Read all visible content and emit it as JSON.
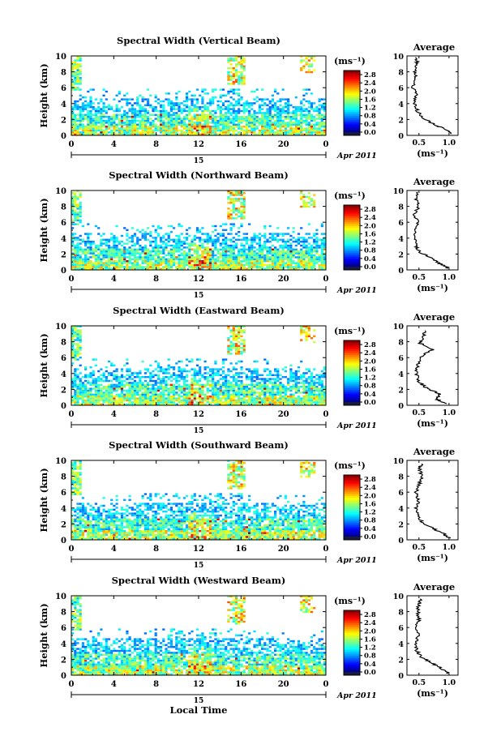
{
  "figure": {
    "xlabel": "Local Time",
    "date_label": "Apr 2011",
    "day_label": "15",
    "average_title": "Average",
    "colorbar_unit": "(ms⁻¹)",
    "average_xlabel": "(ms⁻¹)"
  },
  "chart_data": [
    {
      "type": "heatmap",
      "title": "Spectral Width (Vertical Beam)",
      "ylabel": "Height (km)",
      "xlabel": "",
      "x_ticks": [
        "0",
        "4",
        "8",
        "12",
        "16",
        "20",
        "0"
      ],
      "y_ticks": [
        "0",
        "2",
        "4",
        "6",
        "8",
        "10"
      ],
      "xlim": [
        0,
        24
      ],
      "ylim": [
        0,
        10
      ],
      "colorbar": {
        "label": "(ms⁻¹)",
        "ticks": [
          "0.0",
          "0.4",
          "0.8",
          "1.2",
          "1.6",
          "2.0",
          "2.4",
          "2.8"
        ],
        "range": [
          0,
          3.0
        ]
      },
      "average": {
        "title": "Average",
        "xlabel": "(ms⁻¹)",
        "x_ticks": [
          "0.5",
          "1.0"
        ],
        "xlim": [
          0.3,
          1.15
        ],
        "profile": [
          [
            1.05,
            0.2
          ],
          [
            0.92,
            0.8
          ],
          [
            0.78,
            1.3
          ],
          [
            0.6,
            2.0
          ],
          [
            0.48,
            3.0
          ],
          [
            0.42,
            4.0
          ],
          [
            0.46,
            5.0
          ],
          [
            0.4,
            6.0
          ],
          [
            0.45,
            7.0
          ],
          [
            0.42,
            8.0
          ],
          [
            0.48,
            9.0
          ],
          [
            0.44,
            9.8
          ]
        ]
      }
    },
    {
      "type": "heatmap",
      "title": "Spectral Width (Northward Beam)",
      "ylabel": "Height (km)",
      "xlabel": "",
      "x_ticks": [
        "0",
        "4",
        "8",
        "12",
        "16",
        "20",
        "0"
      ],
      "y_ticks": [
        "0",
        "2",
        "4",
        "6",
        "8",
        "10"
      ],
      "xlim": [
        0,
        24
      ],
      "ylim": [
        0,
        10
      ],
      "colorbar": {
        "label": "(ms⁻¹)",
        "ticks": [
          "0.0",
          "0.4",
          "0.8",
          "1.2",
          "1.6",
          "2.0",
          "2.4",
          "2.8"
        ],
        "range": [
          0,
          3.0
        ]
      },
      "average": {
        "title": "Average",
        "xlabel": "(ms⁻¹)",
        "x_ticks": [
          "0.5",
          "1.0"
        ],
        "xlim": [
          0.3,
          1.15
        ],
        "profile": [
          [
            1.0,
            0.2
          ],
          [
            0.85,
            0.8
          ],
          [
            0.7,
            1.5
          ],
          [
            0.52,
            2.2
          ],
          [
            0.45,
            3.0
          ],
          [
            0.42,
            4.0
          ],
          [
            0.44,
            5.0
          ],
          [
            0.48,
            6.0
          ],
          [
            0.42,
            7.0
          ],
          [
            0.5,
            8.0
          ],
          [
            0.45,
            9.0
          ],
          [
            0.48,
            9.8
          ]
        ]
      }
    },
    {
      "type": "heatmap",
      "title": "Spectral Width (Eastward Beam)",
      "ylabel": "Height (km)",
      "xlabel": "",
      "x_ticks": [
        "0",
        "4",
        "8",
        "12",
        "16",
        "20",
        "0"
      ],
      "y_ticks": [
        "0",
        "2",
        "4",
        "6",
        "8",
        "10"
      ],
      "xlim": [
        0,
        24
      ],
      "ylim": [
        0,
        10
      ],
      "colorbar": {
        "label": "(ms⁻¹)",
        "ticks": [
          "0.0",
          "0.4",
          "0.8",
          "1.2",
          "1.6",
          "2.0",
          "2.4",
          "2.8"
        ],
        "range": [
          0,
          3.0
        ]
      },
      "average": {
        "title": "Average",
        "xlabel": "(ms⁻¹)",
        "x_ticks": [
          "0.5",
          "1.0"
        ],
        "xlim": [
          0.3,
          1.15
        ],
        "profile": [
          [
            0.95,
            0.2
          ],
          [
            0.78,
            0.8
          ],
          [
            0.85,
            1.4
          ],
          [
            0.62,
            2.2
          ],
          [
            0.5,
            3.0
          ],
          [
            0.45,
            4.0
          ],
          [
            0.48,
            5.0
          ],
          [
            0.55,
            6.2
          ],
          [
            0.72,
            7.0
          ],
          [
            0.52,
            7.8
          ],
          [
            0.58,
            8.5
          ],
          [
            0.6,
            9.4
          ]
        ]
      }
    },
    {
      "type": "heatmap",
      "title": "Spectral Width (Southward Beam)",
      "ylabel": "Height (km)",
      "xlabel": "",
      "x_ticks": [
        "0",
        "4",
        "8",
        "12",
        "16",
        "20",
        "0"
      ],
      "y_ticks": [
        "0",
        "2",
        "4",
        "6",
        "8",
        "10"
      ],
      "xlim": [
        0,
        24
      ],
      "ylim": [
        0,
        10
      ],
      "colorbar": {
        "label": "(ms⁻¹)",
        "ticks": [
          "0.0",
          "0.4",
          "0.8",
          "1.2",
          "1.6",
          "2.0",
          "2.4",
          "2.8"
        ],
        "range": [
          0,
          3.0
        ]
      },
      "average": {
        "title": "Average",
        "xlabel": "(ms⁻¹)",
        "x_ticks": [
          "0.5",
          "1.0"
        ],
        "xlim": [
          0.3,
          1.15
        ],
        "profile": [
          [
            1.02,
            0.2
          ],
          [
            0.9,
            0.8
          ],
          [
            0.72,
            1.5
          ],
          [
            0.56,
            2.2
          ],
          [
            0.48,
            3.0
          ],
          [
            0.45,
            4.0
          ],
          [
            0.5,
            5.0
          ],
          [
            0.45,
            6.0
          ],
          [
            0.5,
            7.0
          ],
          [
            0.55,
            8.0
          ],
          [
            0.5,
            9.0
          ],
          [
            0.55,
            9.6
          ]
        ]
      }
    },
    {
      "type": "heatmap",
      "title": "Spectral Width (Westward Beam)",
      "ylabel": "Height (km)",
      "xlabel": "Local Time",
      "x_ticks": [
        "0",
        "4",
        "8",
        "12",
        "16",
        "20",
        "0"
      ],
      "y_ticks": [
        "0",
        "2",
        "4",
        "6",
        "8",
        "10"
      ],
      "xlim": [
        0,
        24
      ],
      "ylim": [
        0,
        10
      ],
      "colorbar": {
        "label": "(ms⁻¹)",
        "ticks": [
          "0.0",
          "0.4",
          "0.8",
          "1.2",
          "1.6",
          "2.0",
          "2.4",
          "2.8"
        ],
        "range": [
          0,
          3.0
        ]
      },
      "average": {
        "title": "Average",
        "xlabel": "(ms⁻¹)",
        "x_ticks": [
          "0.5",
          "1.0"
        ],
        "xlim": [
          0.3,
          1.15
        ],
        "profile": [
          [
            1.0,
            0.2
          ],
          [
            0.88,
            0.8
          ],
          [
            0.72,
            1.5
          ],
          [
            0.55,
            2.2
          ],
          [
            0.47,
            3.0
          ],
          [
            0.44,
            4.0
          ],
          [
            0.48,
            5.0
          ],
          [
            0.46,
            6.0
          ],
          [
            0.5,
            7.0
          ],
          [
            0.48,
            8.0
          ],
          [
            0.5,
            9.0
          ],
          [
            0.52,
            9.6
          ]
        ]
      }
    }
  ]
}
